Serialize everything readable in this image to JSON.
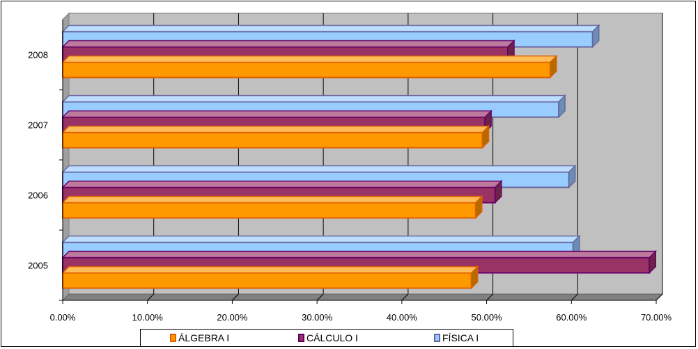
{
  "chart_data": {
    "type": "bar",
    "orientation": "horizontal",
    "categories": [
      "2005",
      "2006",
      "2007",
      "2008"
    ],
    "series": [
      {
        "name": "ÁLGEBRA I",
        "values": [
          48.2,
          48.7,
          49.5,
          57.5
        ],
        "color": "#FF9900",
        "edge": "#E06000"
      },
      {
        "name": "CÁLCULO I",
        "values": [
          69.2,
          51.0,
          49.8,
          52.5
        ],
        "color": "#993366",
        "edge": "#660066"
      },
      {
        "name": "FÍSICA I",
        "values": [
          60.2,
          59.7,
          58.5,
          62.5
        ],
        "color": "#99CCFF",
        "edge": "#6666A0"
      }
    ],
    "xlim": [
      0,
      70
    ],
    "xticks": [
      "0.00%",
      "10.00%",
      "20.00%",
      "30.00%",
      "40.00%",
      "50.00%",
      "60.00%",
      "70.00%"
    ],
    "grid": true,
    "legend_position": "bottom",
    "plot_background": "#C0C0C0"
  }
}
